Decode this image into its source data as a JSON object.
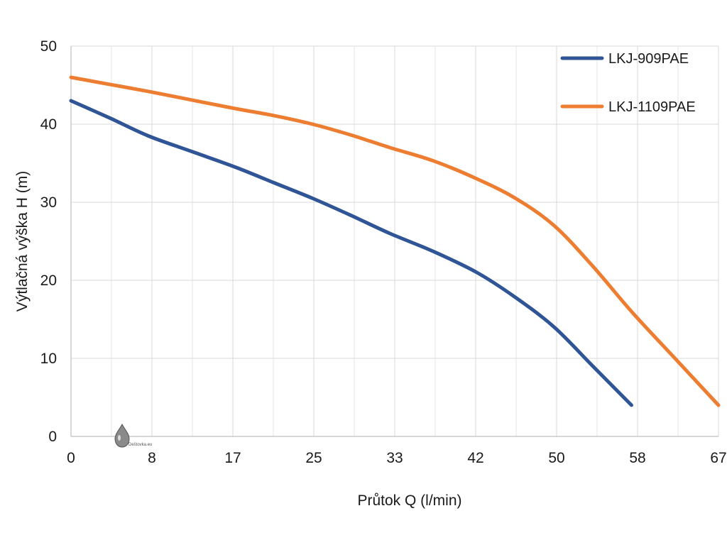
{
  "chart_data": {
    "type": "line",
    "xlabel": "Průtok Q (l/min)",
    "ylabel": "Výtlačná výška H (m)",
    "x_ticks": [
      "0",
      "8",
      "17",
      "25",
      "33",
      "42",
      "50",
      "58",
      "67"
    ],
    "y_ticks": [
      "0",
      "10",
      "20",
      "30",
      "40",
      "50"
    ],
    "xlim": [
      0,
      67
    ],
    "ylim": [
      0,
      50
    ],
    "grid": "vertical and horizontal",
    "legend_position": "top-right",
    "series": [
      {
        "name": "LKJ-909PAE",
        "color": "#2F5597",
        "x": [
          0,
          4,
          8,
          12.5,
          17,
          21,
          25,
          29,
          33,
          37.5,
          42,
          46,
          50,
          54,
          58
        ],
        "y": [
          43,
          40.8,
          38.5,
          36.5,
          34.5,
          32.5,
          30.5,
          28.3,
          26,
          23.7,
          21,
          17.8,
          14,
          9,
          4
        ]
      },
      {
        "name": "LKJ-1109PAE",
        "color": "#ED7D31",
        "x": [
          0,
          4,
          8,
          12.5,
          17,
          21,
          25,
          29,
          33,
          37.5,
          42,
          46,
          50,
          54,
          58,
          62.5,
          67
        ],
        "y": [
          46,
          45.1,
          44.2,
          43.1,
          42,
          41.1,
          40,
          38.6,
          37,
          35.3,
          33,
          30.5,
          27,
          21.8,
          16,
          10,
          4
        ]
      }
    ]
  },
  "watermark": {
    "text": "Deštovka.eu",
    "icon": "water-drop-icon"
  }
}
